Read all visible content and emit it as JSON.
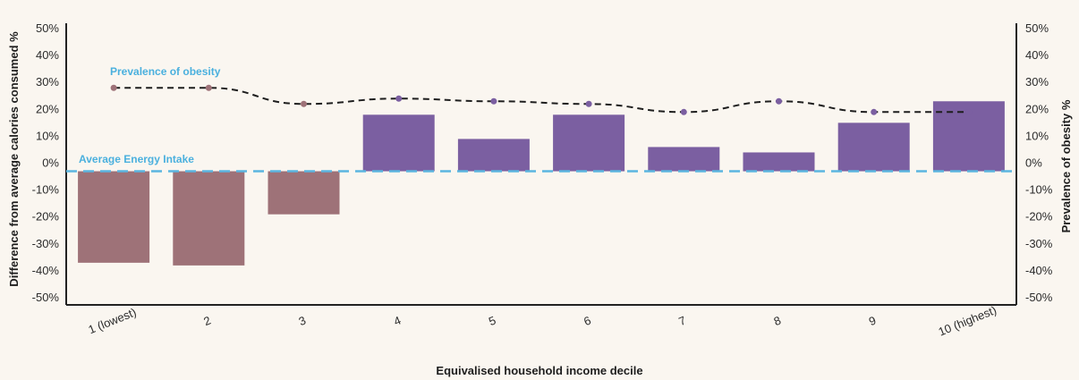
{
  "chart_data": {
    "type": "bar",
    "categories": [
      "1 (lowest)",
      "2",
      "3",
      "4",
      "5",
      "6",
      "7",
      "8",
      "9",
      "10 (highest)"
    ],
    "series": [
      {
        "values": [
          -37,
          -38,
          -19,
          18,
          9,
          18,
          6,
          4,
          15,
          23
        ]
      }
    ],
    "line_series": [
      {
        "name": "Prevalence of obesity",
        "values": [
          28,
          28,
          22,
          24,
          23,
          22,
          19,
          23,
          19,
          19
        ]
      }
    ],
    "reference_line": {
      "name": "Average Energy Intake",
      "value": -3
    },
    "xlabel": "Equivalised household income decile",
    "ylabel": "Difference from average calories consumed %",
    "y2label": "Prevalence of obesity %",
    "ylim": [
      -50,
      50
    ],
    "y2lim": [
      -50,
      50
    ],
    "yticks": [
      "50%",
      "40%",
      "30%",
      "20%",
      "10%",
      "0%",
      "-10%",
      "-20%",
      "-30%",
      "-40%",
      "-50%"
    ],
    "grid": false,
    "colors": {
      "negative_bar": "#9e7278",
      "positive_bar": "#7b5fa1",
      "obesity_line": "#1e1e1e",
      "average_line": "#5bb5e0",
      "annotation_text": "#4ab0de"
    }
  }
}
